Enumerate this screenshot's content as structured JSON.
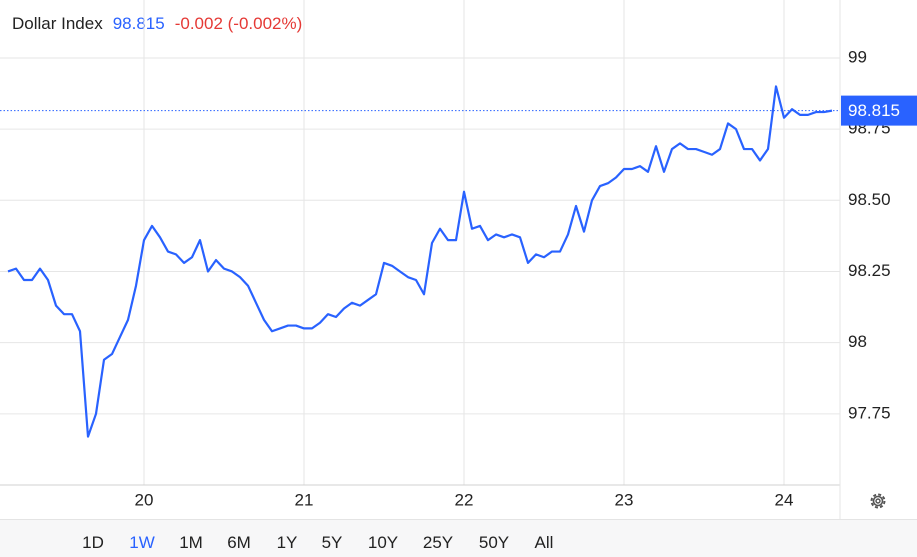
{
  "chart_data": {
    "type": "line",
    "title": "Dollar Index",
    "last_price": 98.815,
    "change": "-0.002 (-0.002%)",
    "ranges": [
      "1D",
      "1W",
      "1M",
      "6M",
      "1Y",
      "5Y",
      "10Y",
      "25Y",
      "50Y",
      "All"
    ],
    "selected_range_index": 1,
    "x": [
      19.15,
      19.2,
      19.25,
      19.3,
      19.35,
      19.4,
      19.45,
      19.5,
      19.55,
      19.6,
      19.65,
      19.7,
      19.75,
      19.8,
      19.85,
      19.9,
      19.95,
      20.0,
      20.05,
      20.1,
      20.15,
      20.2,
      20.25,
      20.3,
      20.35,
      20.4,
      20.45,
      20.5,
      20.55,
      20.6,
      20.65,
      20.7,
      20.75,
      20.8,
      20.85,
      20.9,
      20.95,
      21.0,
      21.05,
      21.1,
      21.15,
      21.2,
      21.25,
      21.3,
      21.35,
      21.4,
      21.45,
      21.5,
      21.55,
      21.6,
      21.65,
      21.7,
      21.75,
      21.8,
      21.85,
      21.9,
      21.95,
      22.0,
      22.05,
      22.1,
      22.15,
      22.2,
      22.25,
      22.3,
      22.35,
      22.4,
      22.45,
      22.5,
      22.55,
      22.6,
      22.65,
      22.7,
      22.75,
      22.8,
      22.85,
      22.9,
      22.95,
      23.0,
      23.05,
      23.1,
      23.15,
      23.2,
      23.25,
      23.3,
      23.35,
      23.4,
      23.45,
      23.5,
      23.55,
      23.6,
      23.65,
      23.7,
      23.75,
      23.8,
      23.85,
      23.9,
      23.95,
      24.0,
      24.05,
      24.1,
      24.15,
      24.2,
      24.25,
      24.3
    ],
    "series": [
      {
        "color": "#2962ff",
        "values": [
          98.25,
          98.26,
          98.22,
          98.22,
          98.26,
          98.22,
          98.13,
          98.1,
          98.1,
          98.04,
          97.67,
          97.75,
          97.94,
          97.96,
          98.02,
          98.08,
          98.2,
          98.36,
          98.41,
          98.37,
          98.32,
          98.31,
          98.28,
          98.3,
          98.36,
          98.25,
          98.29,
          98.26,
          98.25,
          98.23,
          98.2,
          98.14,
          98.08,
          98.04,
          98.05,
          98.06,
          98.06,
          98.05,
          98.05,
          98.07,
          98.1,
          98.09,
          98.12,
          98.14,
          98.13,
          98.15,
          98.17,
          98.28,
          98.27,
          98.25,
          98.23,
          98.22,
          98.17,
          98.35,
          98.4,
          98.36,
          98.36,
          98.53,
          98.4,
          98.41,
          98.36,
          98.38,
          98.37,
          98.38,
          98.37,
          98.28,
          98.31,
          98.3,
          98.32,
          98.32,
          98.38,
          98.48,
          98.39,
          98.5,
          98.55,
          98.56,
          98.58,
          98.61,
          98.61,
          98.62,
          98.6,
          98.69,
          98.6,
          98.68,
          98.7,
          98.68,
          98.68,
          98.67,
          98.66,
          98.68,
          98.77,
          98.75,
          98.68,
          98.68,
          98.64,
          98.68,
          98.9,
          98.79,
          98.82,
          98.8,
          98.8,
          98.81,
          98.81,
          98.815
        ]
      }
    ],
    "xlim": [
      19.15,
      24.35
    ],
    "xticks": [
      20,
      21,
      22,
      23,
      24
    ],
    "ylim": [
      97.5,
      99.2
    ],
    "yticks": [
      99,
      98.75,
      {
        "value": 98.5,
        "label": "98.50"
      },
      98.25,
      98,
      97.75
    ],
    "grid": true,
    "axis_side": "right"
  }
}
